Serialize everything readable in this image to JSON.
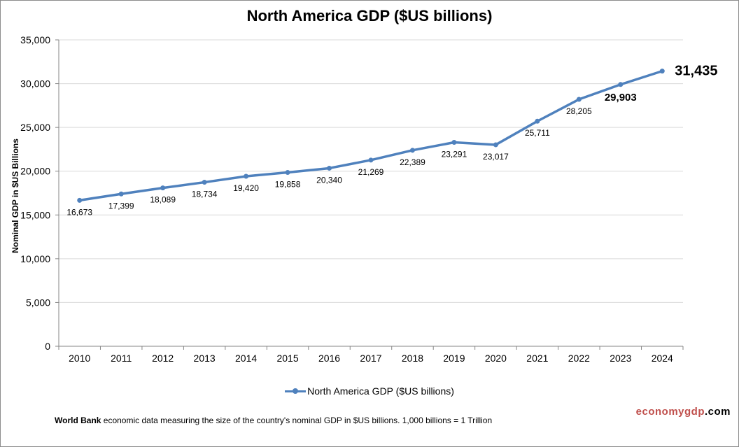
{
  "chart_data": {
    "type": "line",
    "title": "North America GDP ($US billions)",
    "ylabel": "Nominal GDP in $US Billions",
    "xlabel": "",
    "x": [
      "2010",
      "2011",
      "2012",
      "2013",
      "2014",
      "2015",
      "2016",
      "2017",
      "2018",
      "2019",
      "2020",
      "2021",
      "2022",
      "2023",
      "2024"
    ],
    "series": [
      {
        "name": "North America GDP ($US billions)",
        "values": [
          16673,
          17399,
          18089,
          18734,
          19420,
          19858,
          20340,
          21269,
          22389,
          23291,
          23017,
          25711,
          28205,
          29903,
          31435
        ],
        "labels": [
          "16,673",
          "17,399",
          "18,089",
          "18,734",
          "19,420",
          "19,858",
          "20,340",
          "21,269",
          "22,389",
          "23,291",
          "23,017",
          "25,711",
          "28,205",
          "29,903",
          "31,435"
        ]
      }
    ],
    "ylim": [
      0,
      35000
    ],
    "yticks": [
      "0",
      "5,000",
      "10,000",
      "15,000",
      "20,000",
      "25,000",
      "30,000",
      "35,000"
    ],
    "grid": true,
    "legend": "bottom",
    "color": "#4f81bd"
  },
  "footer": {
    "source": "World Bank",
    "text": " economic data  measuring the size of the country's nominal GDP in $US billions. 1,000 billions = 1 Trillion"
  },
  "brand": {
    "part1": "economygdp",
    "part2": ".com"
  },
  "colors": {
    "line": "#4f81bd",
    "brand": "#c0504d",
    "grid": "#d9d9d9",
    "axis": "#868686"
  }
}
